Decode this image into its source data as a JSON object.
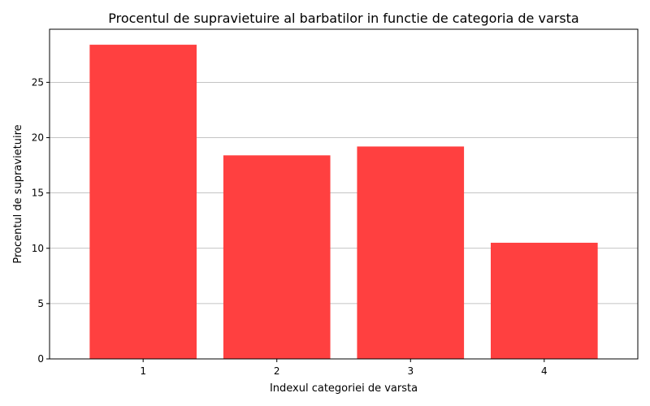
{
  "chart_data": {
    "type": "bar",
    "title": "Procentul de supravietuire al barbatilor in functie de categoria de varsta",
    "xlabel": "Indexul categoriei de varsta",
    "ylabel": "Procentul de supravietuire",
    "categories": [
      "1",
      "2",
      "3",
      "4"
    ],
    "values": [
      28.4,
      18.4,
      19.2,
      10.5
    ],
    "ylim": [
      0,
      29.8
    ],
    "yticks": [
      0,
      5,
      10,
      15,
      20,
      25
    ],
    "grid": "y",
    "bar_color": "#ff4040",
    "legend": "none"
  }
}
